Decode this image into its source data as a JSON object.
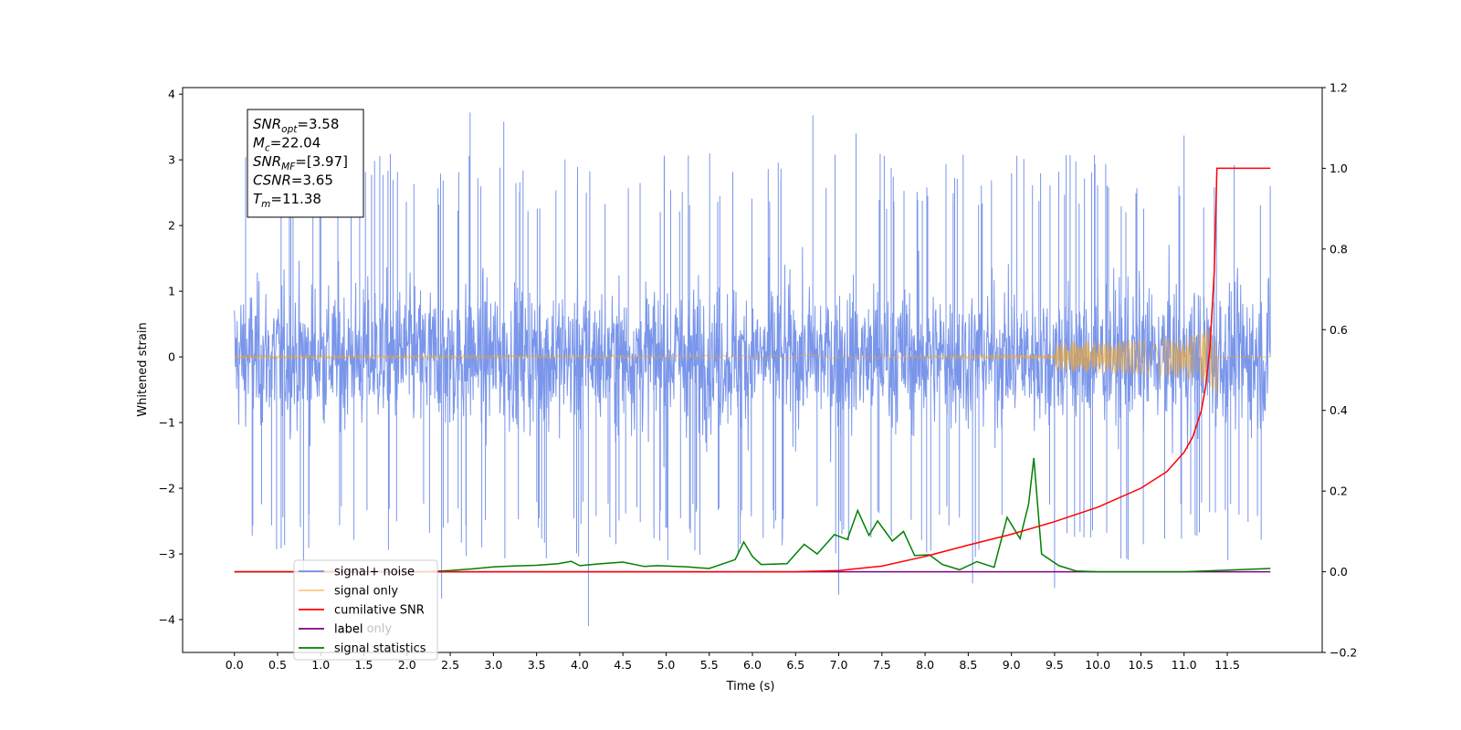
{
  "chart_data": {
    "type": "line",
    "xlabel": "Time (s)",
    "ylabel": "Whitened strain",
    "xlim": [
      -0.6,
      12.6
    ],
    "ylim": [
      -4.5,
      4.1
    ],
    "y2lim": [
      -0.2,
      1.2
    ],
    "x_ticks": [
      0.0,
      0.5,
      1.0,
      1.5,
      2.0,
      2.5,
      3.0,
      3.5,
      4.0,
      4.5,
      5.0,
      5.5,
      6.0,
      6.5,
      7.0,
      7.5,
      8.0,
      8.5,
      9.0,
      9.5,
      10.0,
      10.5,
      11.0,
      11.5
    ],
    "x_tick_labels": [
      "0.0",
      "0.5",
      "1.0",
      "1.5",
      "2.0",
      "2.5",
      "3.0",
      "3.5",
      "4.0",
      "4.5",
      "5.0",
      "5.5",
      "6.0",
      "6.5",
      "7.0",
      "7.5",
      "8.0",
      "8.5",
      "9.0",
      "9.5",
      "10.0",
      "10.5",
      "11.0",
      "11.5"
    ],
    "y_ticks": [
      -4,
      -3,
      -2,
      -1,
      0,
      1,
      2,
      3,
      4
    ],
    "y_tick_labels": [
      "−4",
      "−3",
      "−2",
      "−1",
      "0",
      "1",
      "2",
      "3",
      "4"
    ],
    "y2_ticks": [
      -0.2,
      0.0,
      0.2,
      0.4,
      0.6,
      0.8,
      1.0,
      1.2
    ],
    "y2_tick_labels": [
      "−0.2",
      "0.0",
      "0.2",
      "0.4",
      "0.6",
      "0.8",
      "1.0",
      "1.2"
    ],
    "grid": false,
    "legend_position": "lower-left",
    "annotation": [
      {
        "base": "SNR",
        "sub": "opt",
        "value": "=3.58"
      },
      {
        "base": "M",
        "sub": "c",
        "value": "=22.04"
      },
      {
        "base": "SNR",
        "sub": "MF",
        "value": "=[3.97]"
      },
      {
        "base": "CSNR",
        "sub": "",
        "value": "=3.65"
      },
      {
        "base": "T",
        "sub": "m",
        "value": "=11.38"
      }
    ],
    "series": [
      {
        "name": "signal+ noise",
        "color": "#4169e1",
        "axis": "left",
        "noise_envelope": {
          "x_range": [
            0.0,
            12.0
          ],
          "typical_amplitude": 2.0,
          "peak_spikes": [
            {
              "x": 2.73,
              "y": 3.72
            },
            {
              "x": 3.12,
              "y": 3.58
            },
            {
              "x": 6.7,
              "y": 3.68
            },
            {
              "x": 7.2,
              "y": 3.4
            },
            {
              "x": 11.0,
              "y": 3.37
            },
            {
              "x": 11.58,
              "y": 2.92
            }
          ],
          "trough_spikes": [
            {
              "x": 4.1,
              "y": -4.1
            },
            {
              "x": 2.4,
              "y": -3.68
            },
            {
              "x": 7.0,
              "y": -3.62
            },
            {
              "x": 9.5,
              "y": -3.52
            },
            {
              "x": 8.55,
              "y": -3.45
            },
            {
              "x": 0.8,
              "y": -3.3
            }
          ]
        }
      },
      {
        "name": "signal only",
        "color": "#f5a623",
        "axis": "left",
        "chirp": {
          "start": 0.0,
          "merger": 11.38,
          "end": 12.0,
          "peak_amplitude": 0.7
        }
      },
      {
        "name": "cumilative SNR",
        "color": "#ff0000",
        "axis": "right",
        "x": [
          0.0,
          6.5,
          7.0,
          7.5,
          8.0,
          8.5,
          9.0,
          9.5,
          10.0,
          10.5,
          10.8,
          11.0,
          11.1,
          11.2,
          11.25,
          11.3,
          11.35,
          11.38,
          11.5,
          12.0
        ],
        "values": [
          0.0,
          0.0,
          0.003,
          0.014,
          0.038,
          0.066,
          0.093,
          0.124,
          0.16,
          0.207,
          0.248,
          0.296,
          0.334,
          0.399,
          0.459,
          0.557,
          0.745,
          1.0,
          1.0,
          1.0
        ]
      },
      {
        "name": "label",
        "color": "#800080",
        "axis": "right",
        "x": [
          0.0,
          12.0
        ],
        "values": [
          0.0,
          0.0
        ]
      },
      {
        "name": "signal statistics",
        "color": "#008000",
        "axis": "right",
        "x": [
          0.0,
          2.2,
          2.5,
          2.75,
          3.0,
          3.2,
          3.5,
          3.75,
          3.9,
          4.0,
          4.25,
          4.5,
          4.75,
          4.9,
          5.25,
          5.5,
          5.8,
          5.9,
          6.0,
          6.1,
          6.4,
          6.6,
          6.75,
          6.95,
          7.1,
          7.22,
          7.35,
          7.45,
          7.62,
          7.75,
          7.88,
          8.05,
          8.2,
          8.4,
          8.6,
          8.8,
          8.95,
          9.1,
          9.2,
          9.26,
          9.35,
          9.55,
          9.75,
          10.0,
          11.0,
          12.0
        ],
        "values": [
          0.0,
          0.0,
          0.003,
          0.007,
          0.012,
          0.014,
          0.016,
          0.02,
          0.026,
          0.015,
          0.02,
          0.024,
          0.013,
          0.015,
          0.012,
          0.008,
          0.03,
          0.074,
          0.038,
          0.018,
          0.02,
          0.068,
          0.044,
          0.092,
          0.08,
          0.152,
          0.09,
          0.126,
          0.076,
          0.1,
          0.04,
          0.042,
          0.018,
          0.005,
          0.025,
          0.011,
          0.135,
          0.082,
          0.168,
          0.282,
          0.044,
          0.015,
          0.002,
          0.0,
          0.0,
          0.008
        ]
      }
    ],
    "legend_extra": [
      "label only"
    ]
  }
}
